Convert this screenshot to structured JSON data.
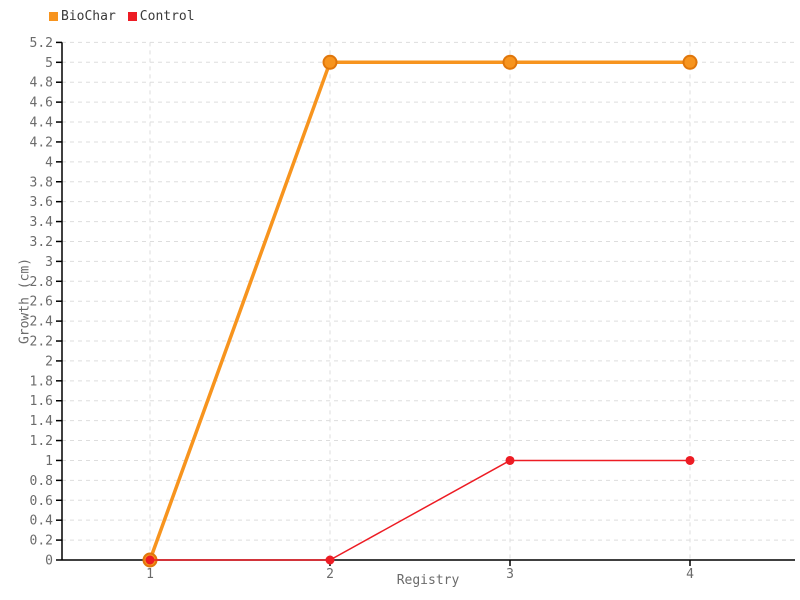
{
  "legend": {
    "items": [
      {
        "label": "BioChar",
        "color": "#f7941e"
      },
      {
        "label": "Control",
        "color": "#ed1c24"
      }
    ]
  },
  "axes": {
    "x_title": "Registry",
    "y_title": "Growth (cm)"
  },
  "chart_data": {
    "type": "line",
    "title": "",
    "xlabel": "Registry",
    "ylabel": "Growth (cm)",
    "x": [
      1,
      2,
      3,
      4
    ],
    "xticks": [
      1,
      2,
      3,
      4
    ],
    "ylim": [
      0,
      5.2
    ],
    "ytick_step": 0.2,
    "grid": true,
    "legend_position": "top-left",
    "series": [
      {
        "name": "BioChar",
        "color": "#f7941e",
        "marker_stroke": "#e0760a",
        "line_width": 3.5,
        "marker_radius": 6.5,
        "marker_stroke_width": 2,
        "values": [
          0,
          5,
          5,
          5
        ]
      },
      {
        "name": "Control",
        "color": "#ed1c24",
        "marker_stroke": "#ed1c24",
        "line_width": 1.5,
        "marker_radius": 4.5,
        "marker_stroke_width": 0,
        "values": [
          0,
          0,
          1,
          1
        ]
      }
    ],
    "style": {
      "grid_color": "#dddddd",
      "axis_color": "#000000",
      "tick_label_color": "#6b6b6b"
    }
  }
}
